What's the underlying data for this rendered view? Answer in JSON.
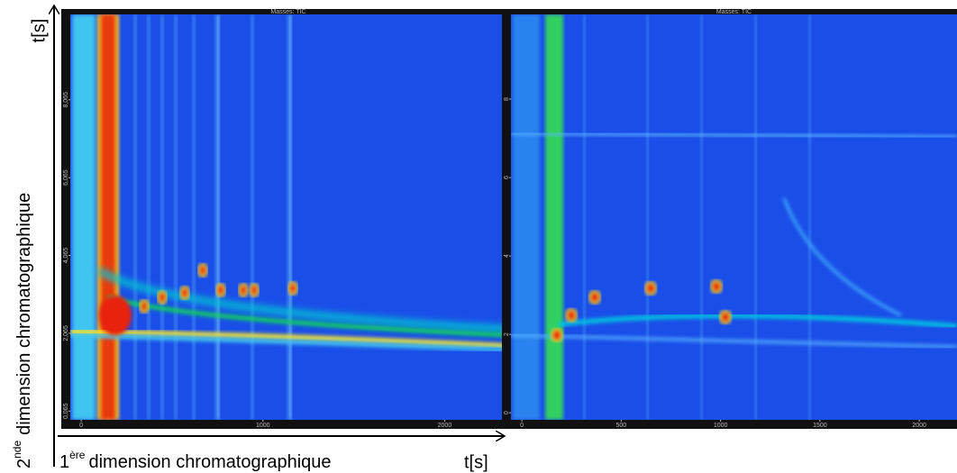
{
  "figure": {
    "y_unit": "t[s]",
    "y_label_num": "2",
    "y_label_sup": "nde",
    "y_label_text": "dimension chromatographique",
    "x_label_num": "1",
    "x_label_sup": "ère",
    "x_label_text": "dimension chromatographique",
    "x_unit": "t[s]"
  },
  "chart_data": [
    {
      "type": "heatmap",
      "title": "Masses: TIC",
      "xlim": [
        -60,
        2340
      ],
      "xticks": [
        0,
        1000,
        2000
      ],
      "ylim": [
        -0.16,
        10.26
      ],
      "yticks": [
        {
          "value": 0.065,
          "label": "0,065"
        },
        {
          "value": 2.065,
          "label": "2,065"
        },
        {
          "value": 4.065,
          "label": "4,065"
        },
        {
          "value": 6.065,
          "label": "6,065"
        },
        {
          "value": 8.065,
          "label": "8,065"
        }
      ]
    },
    {
      "type": "heatmap",
      "title": "Masses: TIC",
      "xlim": [
        -55,
        2190
      ],
      "xticks": [
        0,
        500,
        1000,
        1500,
        2000
      ],
      "ylim": [
        -0.18,
        10.16
      ],
      "yticks": [
        0,
        2,
        4,
        6,
        8
      ]
    }
  ]
}
